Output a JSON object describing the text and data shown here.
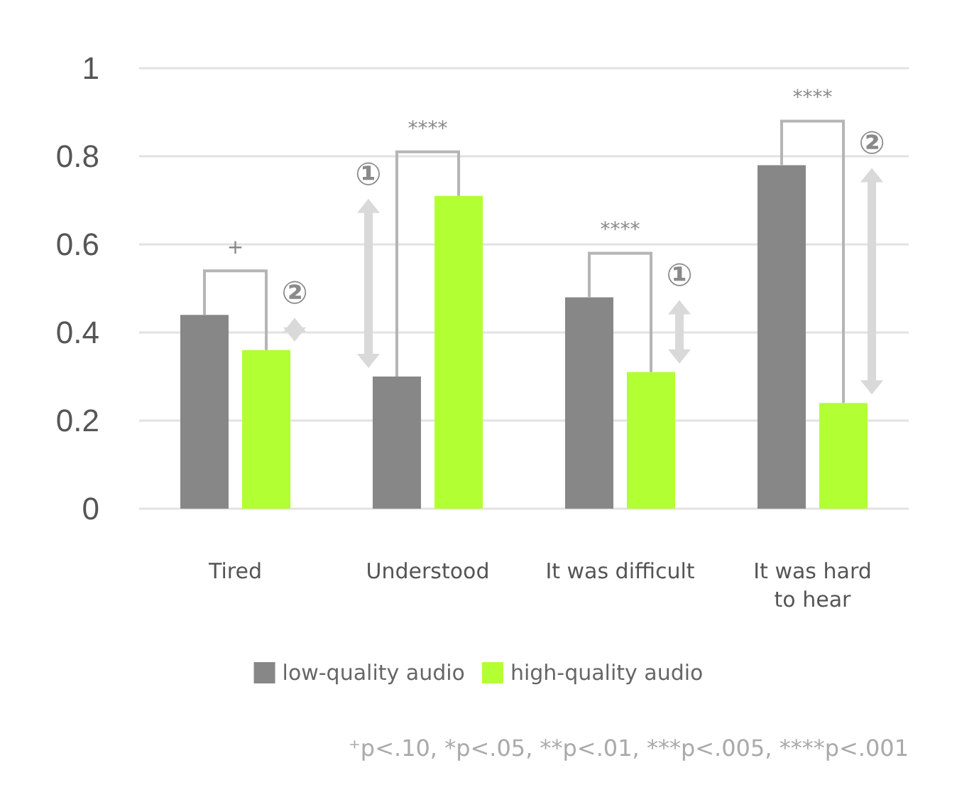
{
  "chart_data": {
    "type": "bar",
    "categories": [
      "Tired",
      "Understood",
      "It was difficult",
      "It was hard\nto hear"
    ],
    "series": [
      {
        "name": "low-quality audio",
        "color": "#878787",
        "values": [
          0.44,
          0.3,
          0.48,
          0.78
        ]
      },
      {
        "name": "high-quality audio",
        "color": "#b2ff33",
        "values": [
          0.36,
          0.71,
          0.31,
          0.24
        ]
      }
    ],
    "ylim": [
      0,
      1
    ],
    "yticks": [
      0,
      0.2,
      0.4,
      0.6,
      0.8,
      1
    ],
    "grid": "y",
    "legend": "bottom",
    "annotations": [
      "+",
      "****",
      "****",
      "****",
      "②",
      "①",
      "①",
      "②",
      "⁺p<.10, *p<.05, **p<.01, ***p<.005, ****p<.001"
    ]
  }
}
